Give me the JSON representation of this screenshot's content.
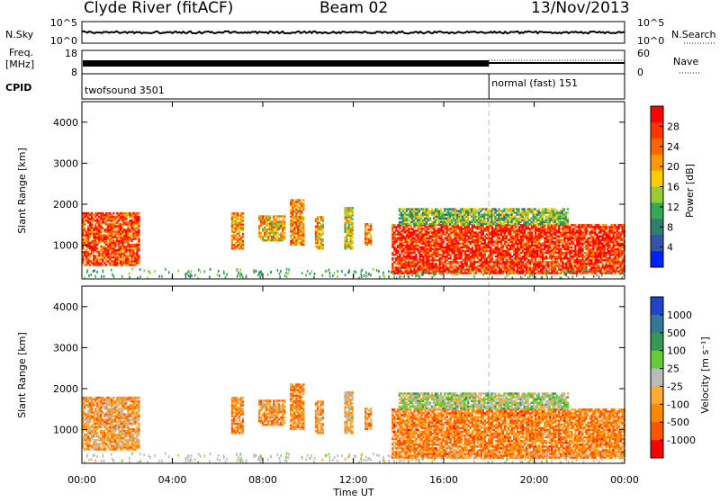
{
  "header": {
    "station": "Clyde River (fitACF)",
    "beam": "Beam 02",
    "date": "13/Nov/2013"
  },
  "noise_panel": {
    "left_label": "N.Sky",
    "right_label": "N.Search",
    "left_ticks": [
      "10^5",
      "10^0"
    ],
    "right_ticks": [
      "10^5",
      "10^0"
    ]
  },
  "freq_panel": {
    "left_label_1": "Freq.",
    "left_label_2": "[MHz]",
    "right_label": "Nave",
    "left_ticks": [
      "18",
      "8"
    ],
    "right_ticks": [
      "60",
      "0"
    ]
  },
  "cpid_panel": {
    "label": "CPID",
    "modes": [
      {
        "name": "twofsound 3501",
        "start_hour": 0,
        "end_hour": 18
      },
      {
        "name": "normal (fast) 151",
        "start_hour": 18,
        "end_hour": 24
      }
    ]
  },
  "power_panel": {
    "ylabel": "Slant Range [km]",
    "colorbar_label": "Power [dB]",
    "colorbar_ticks": [
      "28",
      "24",
      "20",
      "16",
      "12",
      "8",
      "4"
    ],
    "colors": [
      "#ff0000",
      "#ff3300",
      "#ff6600",
      "#ff9900",
      "#ffcc00",
      "#99cc33",
      "#33aa55",
      "#2f7f6f",
      "#3355aa",
      "#0022ff"
    ]
  },
  "velocity_panel": {
    "ylabel": "Slant Range [km]",
    "colorbar_label": "Velocity [m s⁻¹]",
    "colorbar_ticks": [
      "1000",
      "500",
      "100",
      "25",
      "-25",
      "-100",
      "-500",
      "-1000"
    ],
    "colors": [
      "#2244cc",
      "#337799",
      "#339955",
      "#66cc33",
      "#bbbbbb",
      "#ffaa33",
      "#ff8800",
      "#ff5500",
      "#ff0000"
    ]
  },
  "xaxis": {
    "label": "Time UT",
    "ticks": [
      "00:00",
      "04:00",
      "08:00",
      "12:00",
      "16:00",
      "20:00",
      "00:00"
    ]
  },
  "chart_data": {
    "type": "heatmap",
    "title": "Clyde River (fitACF)",
    "x_unit": "hours UT",
    "xlim": [
      0,
      24
    ],
    "ylim_km": [
      180,
      4500
    ],
    "y_ticks_km": [
      1000,
      2000,
      3000,
      4000
    ],
    "power_range_db": [
      0,
      30
    ],
    "velocity_range_ms": [
      -1000,
      1000
    ],
    "echo_regions": [
      {
        "t0": 0.0,
        "t1": 2.5,
        "r0": 500,
        "r1": 1800,
        "power_db": 24,
        "velocity_ms": -300
      },
      {
        "t0": 6.6,
        "t1": 7.1,
        "r0": 900,
        "r1": 1800,
        "power_db": 20,
        "velocity_ms": -400
      },
      {
        "t0": 7.8,
        "t1": 9.0,
        "r0": 1100,
        "r1": 1700,
        "power_db": 18,
        "velocity_ms": -350
      },
      {
        "t0": 9.2,
        "t1": 9.8,
        "r0": 1000,
        "r1": 2100,
        "power_db": 20,
        "velocity_ms": -400
      },
      {
        "t0": 10.3,
        "t1": 10.7,
        "r0": 900,
        "r1": 1700,
        "power_db": 18,
        "velocity_ms": -350
      },
      {
        "t0": 11.6,
        "t1": 12.0,
        "r0": 900,
        "r1": 1900,
        "power_db": 16,
        "velocity_ms": -200
      },
      {
        "t0": 12.5,
        "t1": 12.8,
        "r0": 1000,
        "r1": 1500,
        "power_db": 20,
        "velocity_ms": -400
      },
      {
        "t0": 13.7,
        "t1": 24.0,
        "r0": 300,
        "r1": 1500,
        "power_db": 26,
        "velocity_ms": -450
      },
      {
        "t0": 14.0,
        "t1": 21.5,
        "r0": 1500,
        "r1": 1900,
        "power_db": 12,
        "velocity_ms": 80
      }
    ]
  }
}
